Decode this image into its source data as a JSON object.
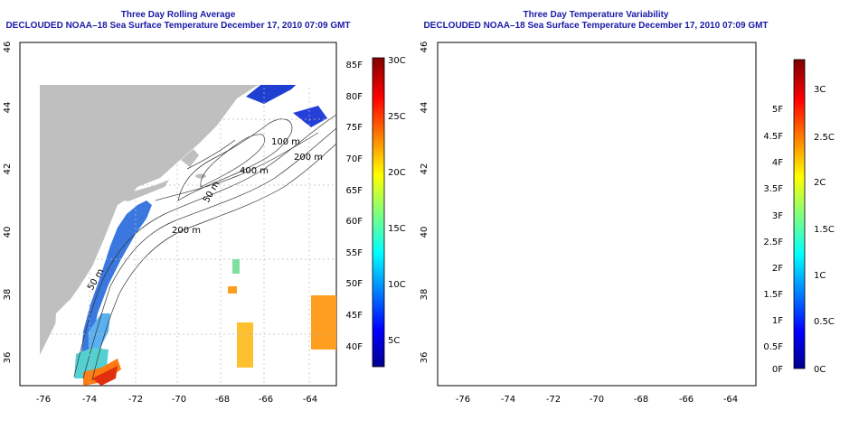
{
  "left_panel": {
    "title": "Three Day Rolling Average",
    "subtitle": "DECLOUDED NOAA–18 Sea Surface Temperature December 17, 2010 07:09 GMT",
    "colorbar": {
      "palette": "jet",
      "celsius_labels": [
        "30C",
        "25C",
        "20C",
        "15C",
        "10C",
        "5C"
      ],
      "fahrenheit_labels": [
        "85F",
        "80F",
        "75F",
        "70F",
        "65F",
        "60F",
        "55F",
        "50F",
        "45F",
        "40F"
      ]
    }
  },
  "right_panel": {
    "title": "Three Day Temperature Variability",
    "subtitle": "DECLOUDED NOAA–18 Sea Surface Temperature December 17, 2010 07:09 GMT",
    "colorbar": {
      "palette": "jet",
      "fahrenheit_labels": [
        "5F",
        "4.5F",
        "4F",
        "3.5F",
        "3F",
        "2.5F",
        "2F",
        "1.5F",
        "1F",
        "0.5F",
        "0F"
      ],
      "celsius_labels": [
        "3C",
        "2.5C",
        "2C",
        "1.5C",
        "1C",
        "0.5C",
        "0C"
      ]
    }
  },
  "map": {
    "x_tick_labels": [
      "-76",
      "-74",
      "-72",
      "-70",
      "-68",
      "-66",
      "-64"
    ],
    "y_tick_labels": [
      "46",
      "44",
      "42",
      "40",
      "38",
      "36"
    ],
    "isobath_labels": [
      "100 m",
      "200 m",
      "400 m",
      "50 m",
      "200 m",
      "50 m"
    ],
    "land_color": "#bfbfbf",
    "ocean_color": "#ffffff"
  }
}
